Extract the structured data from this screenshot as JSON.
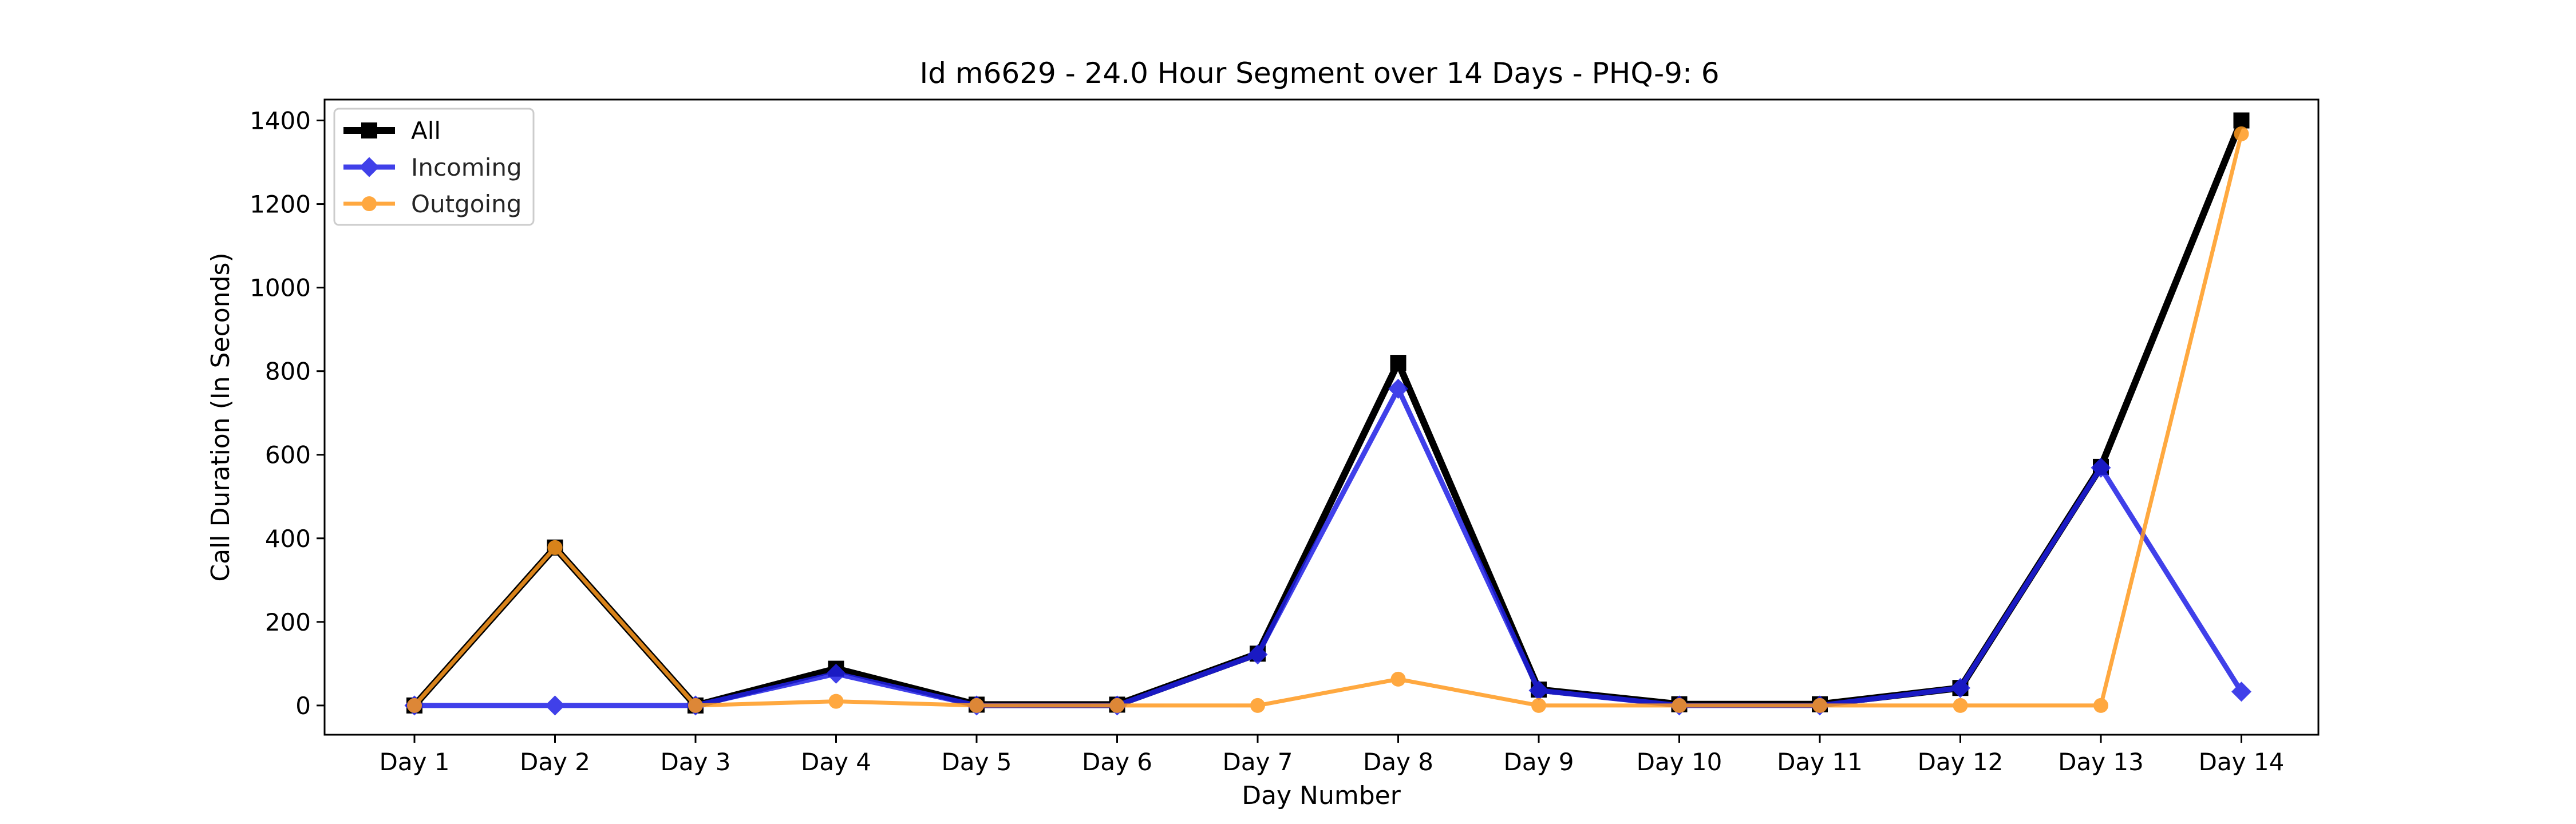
{
  "chart_data": {
    "type": "line",
    "title": "Id m6629 - 24.0 Hour Segment over 14 Days - PHQ-9: 6",
    "xlabel": "Day Number",
    "ylabel": "Call Duration (In Seconds)",
    "categories": [
      "Day 1",
      "Day 2",
      "Day 3",
      "Day 4",
      "Day 5",
      "Day 6",
      "Day 7",
      "Day 8",
      "Day 9",
      "Day 10",
      "Day 11",
      "Day 12",
      "Day 13",
      "Day 14"
    ],
    "ylim": [
      -70,
      1450
    ],
    "yticks": [
      0,
      200,
      400,
      600,
      800,
      1000,
      1200,
      1400
    ],
    "grid": false,
    "legend_position": "top-left",
    "series": [
      {
        "name": "All",
        "color": "#000000",
        "marker": "square",
        "values": [
          0,
          378,
          0,
          88,
          2,
          2,
          124,
          820,
          38,
          3,
          3,
          42,
          571,
          1400
        ]
      },
      {
        "name": "Incoming",
        "color": "#1f1fe6",
        "marker": "diamond",
        "values": [
          0,
          0,
          0,
          76,
          0,
          0,
          122,
          758,
          36,
          0,
          0,
          42,
          569,
          33
        ]
      },
      {
        "name": "Outgoing",
        "color": "#ff9a1f",
        "marker": "circle",
        "values": [
          0,
          378,
          0,
          10,
          0,
          0,
          0,
          63,
          0,
          0,
          0,
          0,
          0,
          1368
        ]
      }
    ]
  }
}
